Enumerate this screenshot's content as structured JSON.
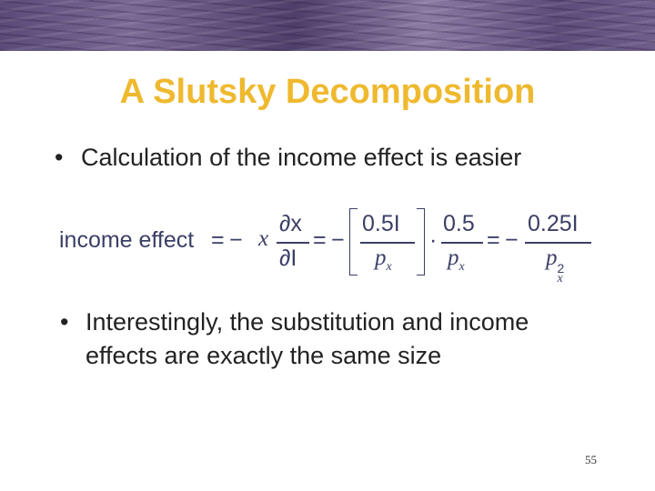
{
  "title": "A Slutsky Decomposition",
  "bullets": [
    {
      "line1": "Calculation of the income effect is easier"
    },
    {
      "line1": "Interestingly, the substitution and income",
      "line2": "effects are exactly the same size"
    }
  ],
  "equation": {
    "lhs": "income effect",
    "eq": "=",
    "minus": "−",
    "x": "x",
    "d_num": "∂x",
    "d_den": "∂I",
    "b_num": "0.5I",
    "px": "p",
    "sub": "x",
    "dot": "·",
    "f2_num": "0.5",
    "f3_num": "0.25I",
    "sup": "2"
  },
  "page_number": "55",
  "colors": {
    "title": "#efb92f",
    "equation": "#3b3f66",
    "header_band": "#6a5a88"
  }
}
